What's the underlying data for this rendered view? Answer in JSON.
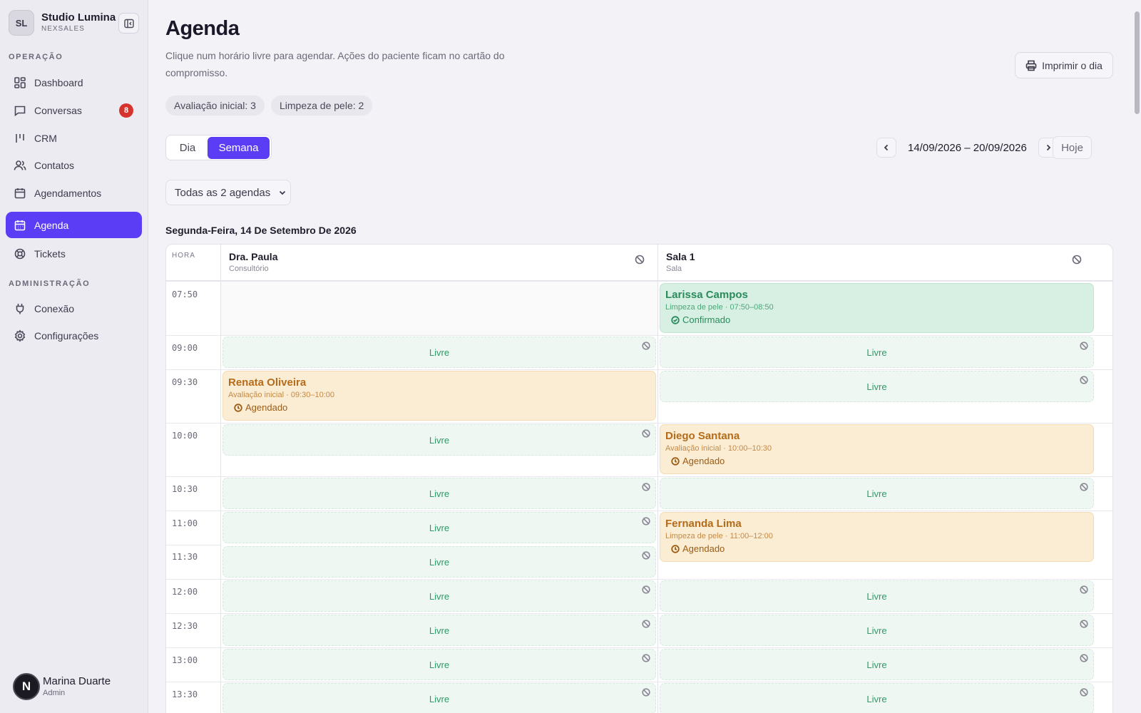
{
  "sidebar": {
    "brand": {
      "initials": "SL",
      "name": "Studio Lumina",
      "company": "NEXSALES"
    },
    "section_operacao": "OPERAÇÃO",
    "section_admin": "ADMINISTRAÇÃO",
    "items": [
      {
        "label": "Dashboard",
        "icon": "dashboard-icon"
      },
      {
        "label": "Conversas",
        "icon": "chat-icon",
        "badge": "8"
      },
      {
        "label": "CRM",
        "icon": "crm-icon"
      },
      {
        "label": "Contatos",
        "icon": "users-icon"
      },
      {
        "label": "Agendamentos",
        "icon": "calendar-icon"
      },
      {
        "label": "Agenda",
        "icon": "calendar-grid-icon",
        "active": true
      },
      {
        "label": "Tickets",
        "icon": "lifebuoy-icon"
      },
      {
        "label": "Conexão",
        "icon": "plug-icon"
      },
      {
        "label": "Configurações",
        "icon": "gear-icon"
      }
    ],
    "user": {
      "initial": "N",
      "name": "Marina Duarte",
      "role": "Admin"
    }
  },
  "header": {
    "title": "Agenda",
    "subtitle": "Clique num horário livre para agendar. Ações do paciente ficam no cartão do compromisso.",
    "print_label": "Imprimir o dia",
    "chips": [
      "Avaliação inicial: 3",
      "Limpeza de pele: 2"
    ]
  },
  "toolbar": {
    "view_day": "Dia",
    "view_week": "Semana",
    "selected_view": "Semana",
    "date_range": "14/09/2026 – 20/09/2026",
    "today_label": "Hoje",
    "filter_label": "Todas as 2 agendas"
  },
  "schedule": {
    "day_title": "Segunda-Feira, 14 De Setembro De 2026",
    "hour_header": "HORA",
    "columns": [
      {
        "name": "Dra. Paula",
        "type": "Consultório"
      },
      {
        "name": "Sala 1",
        "type": "Sala"
      }
    ],
    "free_label": "Livre",
    "times": [
      "07:50",
      "09:00",
      "09:30",
      "10:00",
      "10:30",
      "11:00",
      "11:30",
      "12:00",
      "12:30",
      "13:00",
      "13:30"
    ],
    "appointments": [
      {
        "name": "Larissa Campos",
        "detail": "Limpeza de pele · 07:50–08:50",
        "status": "Confirmado"
      },
      {
        "name": "Renata Oliveira",
        "detail": "Avaliação inicial · 09:30–10:00",
        "status": "Agendado"
      },
      {
        "name": "Diego Santana",
        "detail": "Avaliação inicial · 10:00–10:30",
        "status": "Agendado"
      },
      {
        "name": "Fernanda Lima",
        "detail": "Limpeza de pele · 11:00–12:00",
        "status": "Agendado"
      }
    ]
  },
  "colors": {
    "accent": "#5b3df5",
    "free": "#2f9a68",
    "confirmed": "#2a8b5d",
    "scheduled": "#b46c1a",
    "badge": "#d6332f"
  }
}
